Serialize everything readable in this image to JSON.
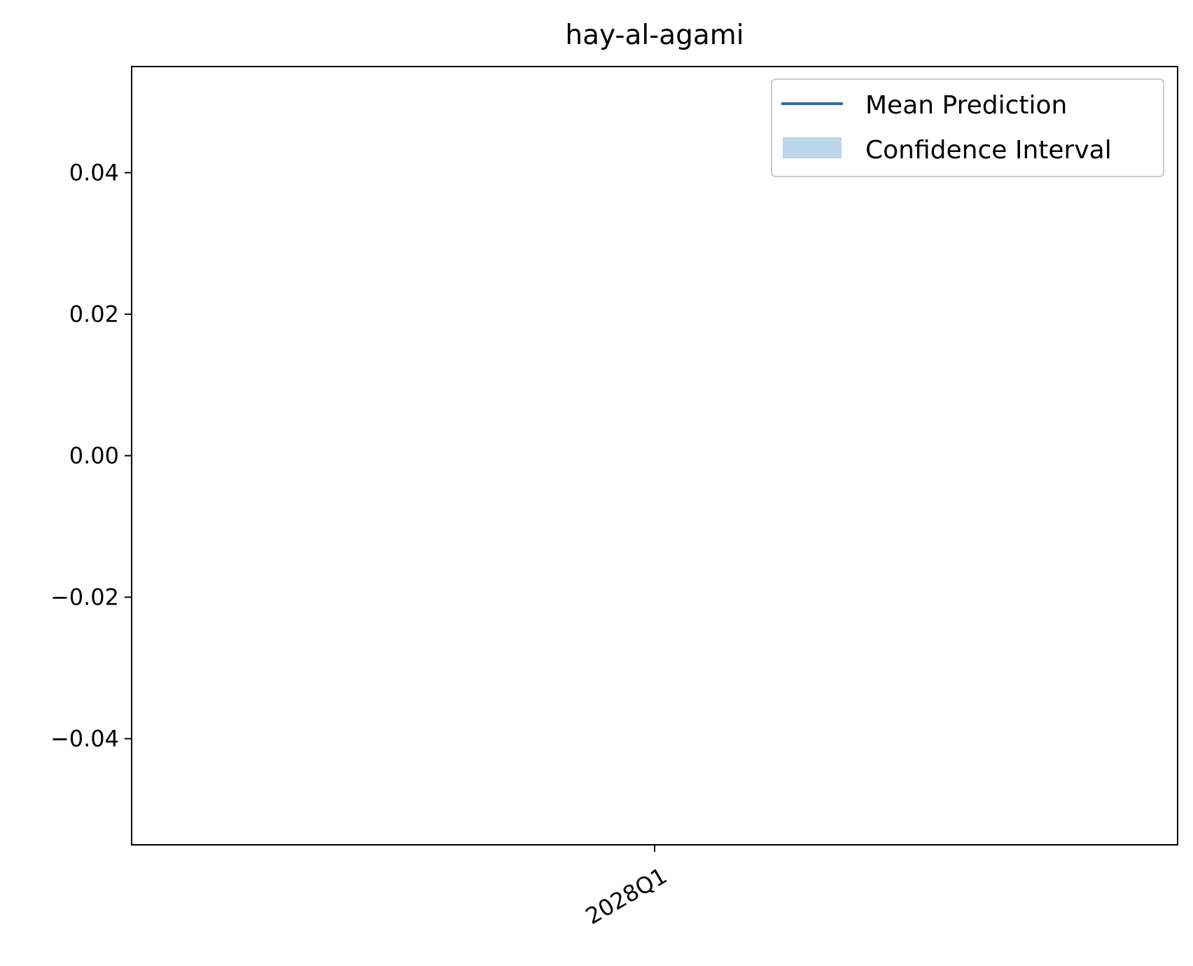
{
  "chart_data": {
    "type": "line",
    "title": "hay-al-agami",
    "xlabel": "",
    "ylabel": "",
    "x_categories": [
      "2028Q1"
    ],
    "ylim": [
      -0.055,
      0.055
    ],
    "y_ticks": [
      0.04,
      0.02,
      0.0,
      -0.02,
      -0.04
    ],
    "y_tick_labels": [
      "0.04",
      "0.02",
      "0.00",
      "−0.02",
      "−0.04"
    ],
    "x_tick_labels": [
      "2028Q1"
    ],
    "grid": false,
    "legend": {
      "placement": "top-right",
      "entries": [
        {
          "label": "Mean Prediction",
          "kind": "line",
          "color": "#2c6fa8"
        },
        {
          "label": "Confidence Interval",
          "kind": "band",
          "color": "#bcd6ea"
        }
      ]
    },
    "series": [
      {
        "name": "Mean Prediction",
        "x": [],
        "y": []
      },
      {
        "name": "Confidence Interval",
        "x": [],
        "lower": [],
        "upper": []
      }
    ]
  }
}
